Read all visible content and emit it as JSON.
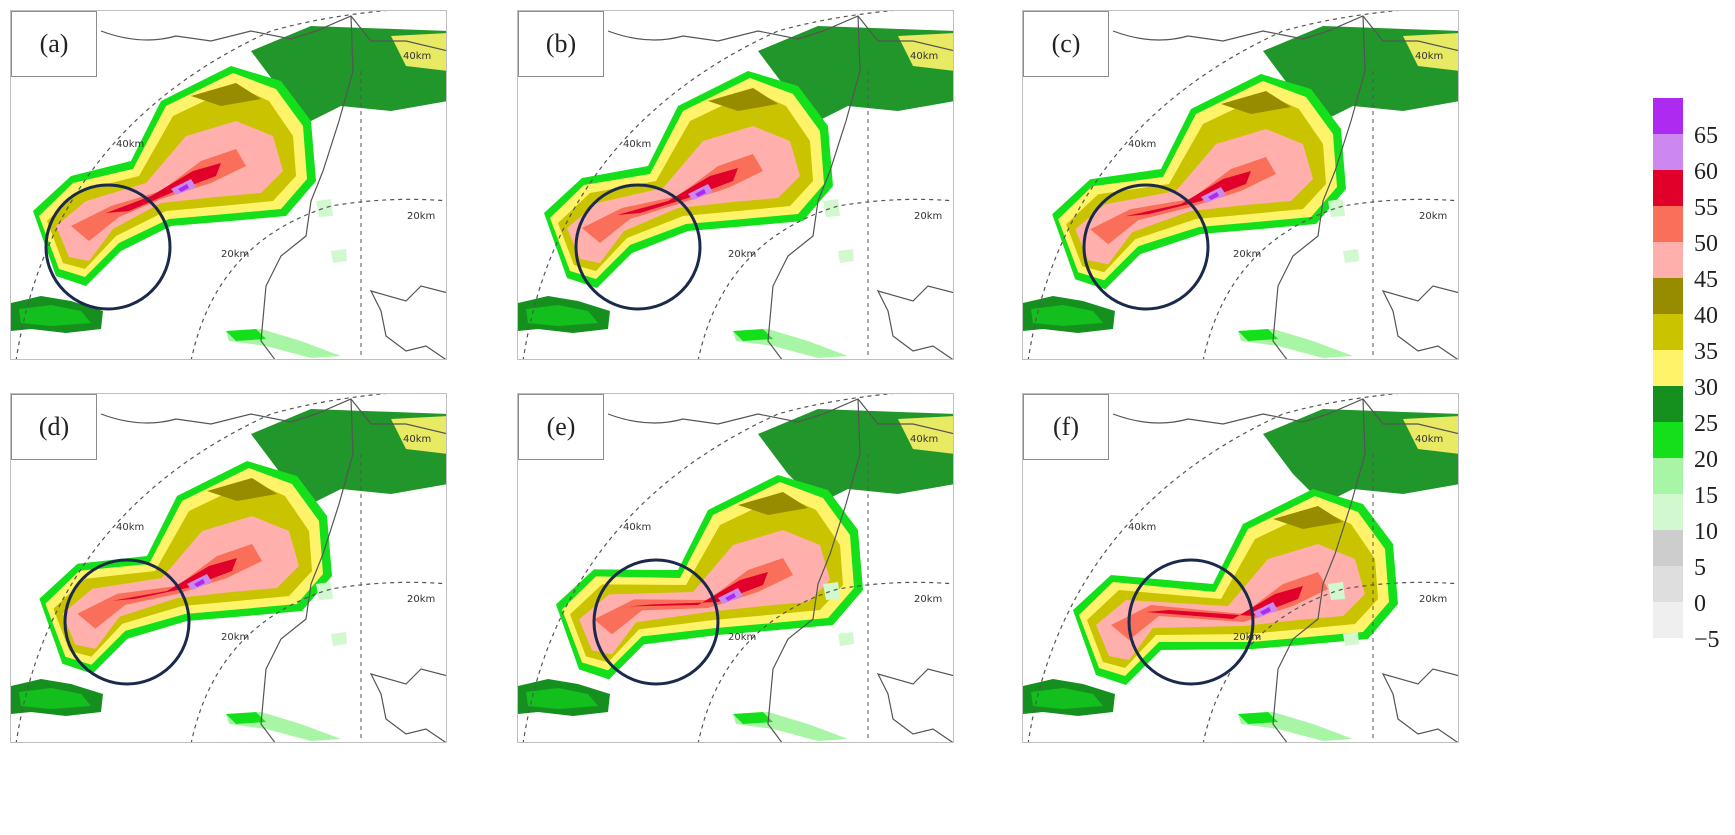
{
  "panels": [
    {
      "label": "(a)",
      "ring_outer": "40km",
      "ring_inner": "20km",
      "ring_outer_2": "40km",
      "ring_inner_2": "20km"
    },
    {
      "label": "(b)",
      "ring_outer": "40km",
      "ring_inner": "20km",
      "ring_outer_2": "40km",
      "ring_inner_2": "20km"
    },
    {
      "label": "(c)",
      "ring_outer": "40km",
      "ring_inner": "20km",
      "ring_outer_2": "40km",
      "ring_inner_2": "20km"
    },
    {
      "label": "(d)",
      "ring_outer": "40km",
      "ring_inner": "20km",
      "ring_outer_2": "40km",
      "ring_inner_2": "20km"
    },
    {
      "label": "(e)",
      "ring_outer": "40km",
      "ring_inner": "20km",
      "ring_outer_2": "40km",
      "ring_inner_2": "20km"
    },
    {
      "label": "(f)",
      "ring_outer": "40km",
      "ring_inner": "20km",
      "ring_outer_2": "40km",
      "ring_inner_2": "20km"
    }
  ],
  "colorbar": {
    "colors": [
      "#ad2bf0",
      "#cc88ee",
      "#e0002a",
      "#fa6f5a",
      "#ffb0ac",
      "#978c00",
      "#c9c300",
      "#fff36a",
      "#15901f",
      "#13e01b",
      "#a8f5a6",
      "#d2f8d0",
      "#cdcdcd",
      "#dedede",
      "#efefef"
    ],
    "ticks": [
      "65",
      "60",
      "55",
      "50",
      "45",
      "40",
      "35",
      "30",
      "25",
      "20",
      "15",
      "10",
      "5",
      "0",
      "−5"
    ]
  }
}
